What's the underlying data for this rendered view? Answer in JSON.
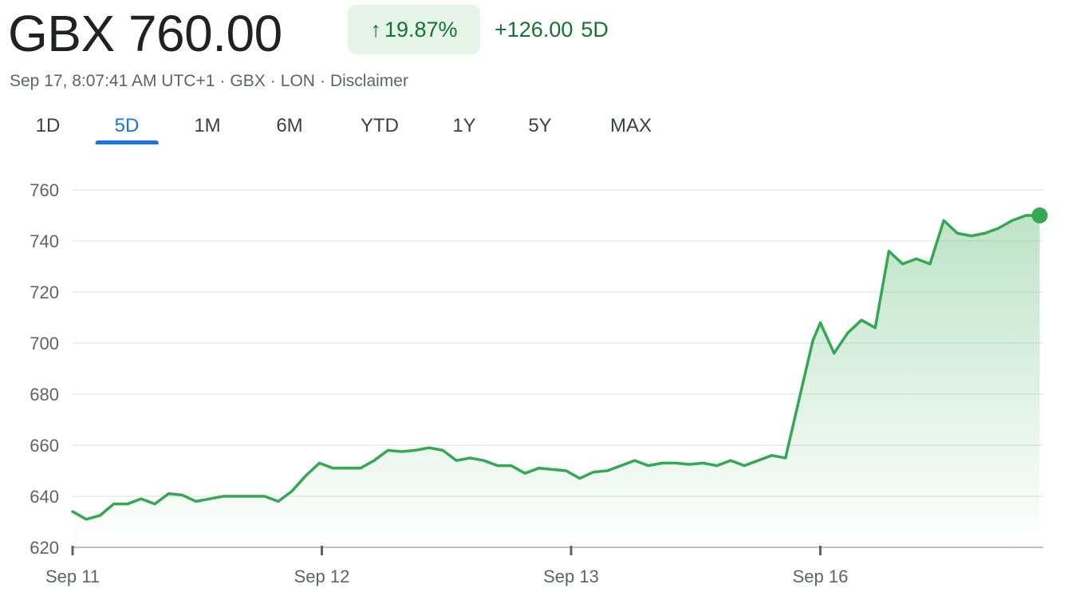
{
  "quote": {
    "price": "GBX 760.00",
    "percent_arrow": "↑",
    "percent": "19.87%",
    "change": "+126.00",
    "period": "5D",
    "timestamp": "Sep 17, 8:07:41 AM UTC+1",
    "currency": "GBX",
    "exchange": "LON",
    "separator": "·",
    "disclaimer": "Disclaimer"
  },
  "tabs": [
    {
      "label": "1D",
      "active": false
    },
    {
      "label": "5D",
      "active": true
    },
    {
      "label": "1M",
      "active": false
    },
    {
      "label": "6M",
      "active": false
    },
    {
      "label": "YTD",
      "active": false
    },
    {
      "label": "1Y",
      "active": false
    },
    {
      "label": "5Y",
      "active": false
    },
    {
      "label": "MAX",
      "active": false
    }
  ],
  "colors": {
    "line": "#34a853",
    "accent": "#1a73e8",
    "positive_text": "#137333",
    "positive_bg": "#e6f4ea",
    "grid": "#e8eaed"
  },
  "chart_data": {
    "type": "area",
    "title": "",
    "xlabel": "",
    "ylabel": "",
    "ylim": [
      620,
      760
    ],
    "yticks": [
      620,
      640,
      660,
      680,
      700,
      720,
      740,
      760
    ],
    "xlim": [
      0,
      4
    ],
    "xticks": [
      {
        "value": 0,
        "label": "Sep 11"
      },
      {
        "value": 1,
        "label": "Sep 12"
      },
      {
        "value": 2,
        "label": "Sep 13"
      },
      {
        "value": 3,
        "label": "Sep 16"
      }
    ],
    "grid": true,
    "series": [
      {
        "x": [
          0,
          0.055,
          0.11,
          0.165,
          0.22,
          0.275,
          0.33,
          0.385,
          0.44,
          0.495,
          0.55,
          0.605,
          0.66,
          0.715,
          0.77,
          0.825,
          0.88,
          0.935,
          0.99,
          1.045,
          1.1,
          1.155,
          1.21,
          1.265,
          1.32,
          1.375,
          1.43,
          1.485,
          1.54,
          1.595,
          1.65,
          1.705,
          1.76,
          1.815,
          1.87,
          1.925,
          1.98,
          2.035,
          2.09,
          2.145,
          2.2,
          2.255,
          2.31,
          2.365,
          2.42,
          2.475,
          2.53,
          2.585,
          2.64,
          2.695,
          2.75,
          2.805,
          2.86,
          2.915,
          2.97,
          3.0,
          3.055,
          3.11,
          3.165,
          3.22,
          3.275,
          3.33,
          3.385,
          3.44,
          3.495,
          3.55,
          3.605,
          3.66,
          3.715,
          3.77,
          3.825,
          3.88
        ],
        "values": [
          634,
          631,
          632.5,
          637,
          637,
          639,
          637,
          641,
          640.5,
          638,
          639,
          640,
          640,
          640,
          640,
          638,
          642,
          648,
          653,
          651,
          651,
          651,
          654,
          658,
          657.5,
          658,
          659,
          658,
          654,
          655,
          654,
          652,
          652,
          649,
          651,
          650.5,
          650,
          647,
          649.5,
          650,
          652,
          654,
          652,
          653,
          653,
          652.5,
          653,
          652,
          654,
          652,
          654,
          656,
          655,
          678,
          701,
          708,
          696,
          704,
          709,
          706,
          736,
          731,
          733,
          731,
          748,
          743,
          742,
          743,
          745,
          748,
          750,
          750
        ]
      }
    ]
  }
}
